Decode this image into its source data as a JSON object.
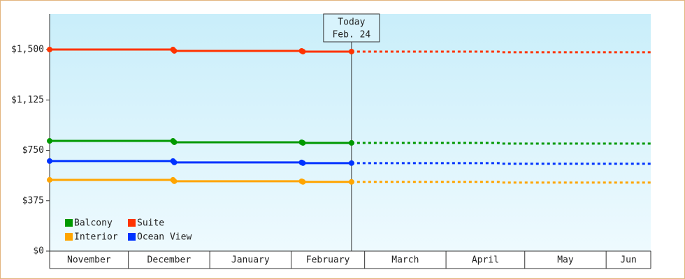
{
  "chart_data": {
    "type": "line",
    "annotation": {
      "x": 115,
      "lines": [
        "Today",
        "Feb. 24"
      ]
    },
    "categories": [
      "November",
      "December",
      "January",
      "February",
      "March",
      "April",
      "May",
      "Jun"
    ],
    "category_edges": [
      0,
      30,
      61,
      92,
      120,
      151,
      181,
      212,
      229
    ],
    "xlim": [
      0,
      229
    ],
    "x": [
      0,
      47,
      47.5,
      96,
      96.5,
      115,
      171,
      172,
      229
    ],
    "series": [
      {
        "name": "Balcony",
        "color": "#009900",
        "values": [
          820,
          820,
          810,
          810,
          805,
          805,
          805,
          800,
          800
        ]
      },
      {
        "name": "Suite",
        "color": "#ff3300",
        "values": [
          1500,
          1500,
          1490,
          1490,
          1485,
          1485,
          1485,
          1480,
          1480
        ]
      },
      {
        "name": "Interior",
        "color": "#ffa500",
        "values": [
          530,
          530,
          520,
          520,
          515,
          515,
          515,
          510,
          510
        ]
      },
      {
        "name": "Ocean View",
        "color": "#0033ff",
        "values": [
          670,
          670,
          660,
          660,
          655,
          655,
          655,
          650,
          650
        ]
      }
    ],
    "ylim": [
      0,
      1765
    ],
    "yticks": [
      {
        "value": 0,
        "label": "$0"
      },
      {
        "value": 375,
        "label": "$375"
      },
      {
        "value": 750,
        "label": "$750"
      },
      {
        "value": 1125,
        "label": "$1,125"
      },
      {
        "value": 1500,
        "label": "$1,500"
      }
    ],
    "legend": "lower left"
  }
}
